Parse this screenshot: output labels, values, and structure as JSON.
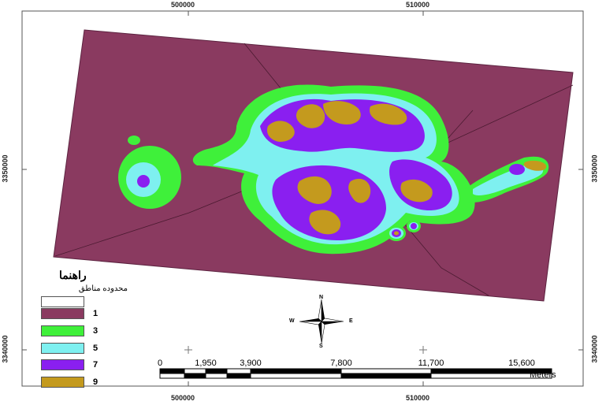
{
  "map": {
    "background_color": "#8a3a60",
    "zone_colors": {
      "1": "#8a3a60",
      "3": "#3ff03a",
      "5": "#7ef0f0",
      "7": "#8a1ff0",
      "9": "#c49a1e"
    }
  },
  "coordinates": {
    "top": [
      "500000",
      "510000"
    ],
    "bottom": [
      "500000",
      "510000"
    ],
    "left": [
      "3350000",
      "3340000"
    ],
    "right": [
      "3350000",
      "3340000"
    ]
  },
  "legend": {
    "title": "راهنما",
    "items": [
      {
        "label": "محدوده مناطق",
        "color": "#ffffff"
      },
      {
        "label": "1",
        "color": "#8a3a60"
      },
      {
        "label": "3",
        "color": "#3ff03a"
      },
      {
        "label": "5",
        "color": "#7ef0f0"
      },
      {
        "label": "7",
        "color": "#8a1ff0"
      },
      {
        "label": "9",
        "color": "#c49a1e"
      }
    ]
  },
  "north_arrow": {
    "n": "N",
    "s": "S",
    "e": "E",
    "w": "W",
    "icon": "north-arrow-compass-icon"
  },
  "scale_bar": {
    "labels": [
      "0",
      "1,950",
      "3,900",
      "7,800",
      "11,700",
      "15,600"
    ],
    "unit": "Meters"
  }
}
